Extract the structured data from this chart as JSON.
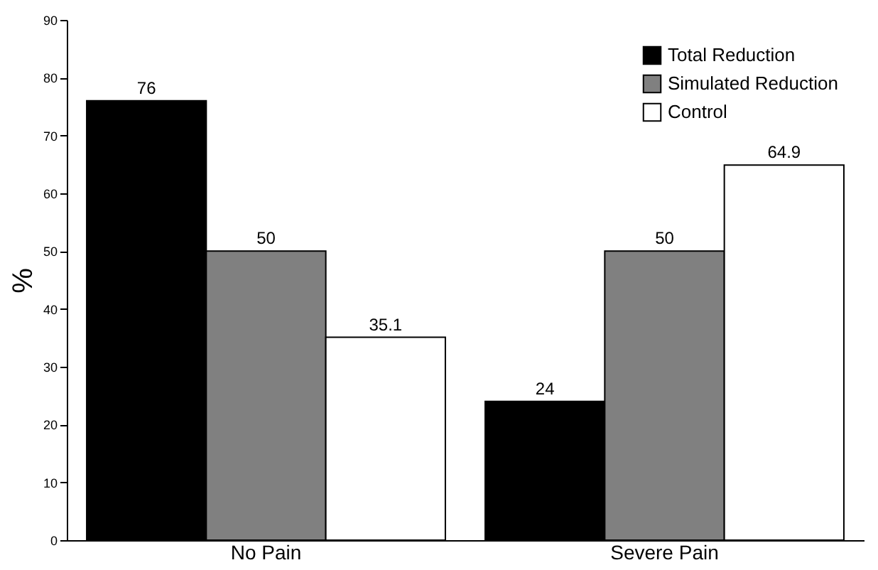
{
  "chart_data": {
    "type": "bar",
    "ylabel": "%",
    "categories": [
      "No Pain",
      "Severe Pain"
    ],
    "series": [
      {
        "name": "Total Reduction",
        "color": "#000000",
        "values": [
          76,
          24
        ]
      },
      {
        "name": "Simulated Reduction",
        "color": "#808080",
        "values": [
          50,
          50
        ]
      },
      {
        "name": "Control",
        "color": "#ffffff",
        "values": [
          35.1,
          64.9
        ]
      }
    ],
    "ylim": [
      0,
      90
    ],
    "yticks": [
      0,
      10,
      20,
      30,
      40,
      50,
      60,
      70,
      80,
      90
    ],
    "data_labels": true,
    "legend": "top right",
    "grid": false
  }
}
